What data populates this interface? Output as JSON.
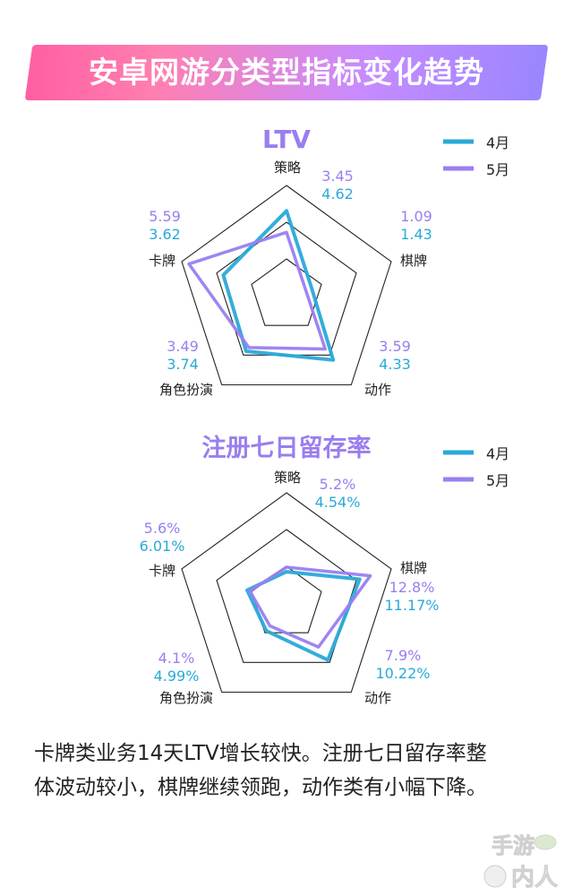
{
  "page": {
    "title": "安卓网游分类型指标变化趋势",
    "caption_line1": "卡牌类业务14天LTV增长较快。注册七日留存率整",
    "caption_line2": "体波动较小，棋牌继续领跑，动作类有小幅下降。",
    "watermark_top": "手游",
    "watermark_bottom": "内人"
  },
  "colors": {
    "april": "#2aa9d8",
    "may": "#9a7ef0",
    "grid": "#222222",
    "title": "#9a7ef0"
  },
  "chart_data": [
    {
      "type": "radar",
      "title": "LTV",
      "axes": [
        "策略",
        "棋牌",
        "动作",
        "角色扮演",
        "卡牌"
      ],
      "rmax": 6,
      "gridlines": 3,
      "series": [
        {
          "name": "4月",
          "values": [
            4.62,
            1.43,
            4.33,
            3.74,
            3.62
          ]
        },
        {
          "name": "5月",
          "values": [
            3.45,
            1.09,
            3.59,
            3.49,
            5.59
          ]
        }
      ],
      "value_labels": [
        {
          "may": "3.45",
          "april": "4.62"
        },
        {
          "may": "1.09",
          "april": "1.43"
        },
        {
          "may": "3.59",
          "april": "4.33"
        },
        {
          "may": "3.49",
          "april": "3.74"
        },
        {
          "may": "5.59",
          "april": "3.62"
        }
      ]
    },
    {
      "type": "radar",
      "title": "注册七日留存率",
      "axes": [
        "策略",
        "棋牌",
        "动作",
        "角色扮演",
        "卡牌"
      ],
      "rmax": 16,
      "gridlines": 3,
      "series": [
        {
          "name": "4月",
          "values": [
            4.54,
            11.17,
            10.22,
            4.99,
            6.01
          ]
        },
        {
          "name": "5月",
          "values": [
            5.2,
            12.8,
            7.9,
            4.1,
            5.6
          ]
        }
      ],
      "value_labels": [
        {
          "may": "5.2%",
          "april": "4.54%"
        },
        {
          "may": "12.8%",
          "april": "11.17%"
        },
        {
          "may": "7.9%",
          "april": "10.22%"
        },
        {
          "may": "4.1%",
          "april": "4.99%"
        },
        {
          "may": "5.6%",
          "april": "6.01%"
        }
      ]
    }
  ]
}
